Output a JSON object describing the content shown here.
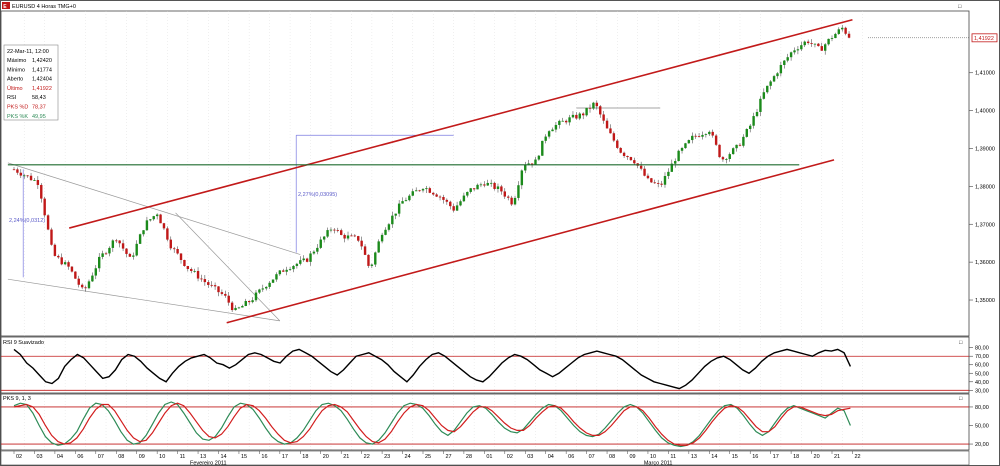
{
  "window": {
    "title": "EURUSD 4 Horas TMG+0",
    "maximize_glyph": "□",
    "close_glyph": "✕",
    "icons": [
      "chart-symbol-icon",
      "maximize-icon",
      "close-icon"
    ]
  },
  "colors": {
    "up_candle": "#1b8a1b",
    "down_candle": "#c01818",
    "channel": "#c21a1a",
    "support": "#1f6b2f",
    "rsi_line": "#000000",
    "stoch_k": "#2e8b57",
    "stoch_d": "#d21e1e",
    "last_price_box": "#c21a1a"
  },
  "info_box": {
    "date": "22-Mar-11, 12:00",
    "rows": [
      {
        "label": "Máximo",
        "value": "1,42420"
      },
      {
        "label": "Mínimo",
        "value": "1,41774"
      },
      {
        "label": "Aberto",
        "value": "1,42404"
      },
      {
        "label": "Último",
        "value": "1,41922",
        "color": "#c21a1a"
      },
      {
        "label": "RSI",
        "value": "58,43"
      },
      {
        "label": "PKS %D",
        "value": "78,37",
        "color": "#c21a1a"
      },
      {
        "label": "PKS %K",
        "value": "49,95",
        "color": "#2e8b57"
      }
    ]
  },
  "annotations": {
    "left_move": "2,24%(0,0312)",
    "mid_move": "2,27%(0,03095)"
  },
  "chart_data": {
    "type": "candlestick",
    "title": "EURUSD 4 Horas TMG+0",
    "ylim": [
      1.3405,
      1.4263
    ],
    "price_ticks": [
      1.35,
      1.36,
      1.37,
      1.38,
      1.39,
      1.4,
      1.41
    ],
    "price_tick_labels": [
      "1,35000",
      "1,36000",
      "1,37000",
      "1,38000",
      "1,39000",
      "1,40000",
      "1,41000"
    ],
    "last_price": 1.41922,
    "last_price_label": "1,41922",
    "support_level": 1.3857,
    "resistance_box": {
      "from_day": 27.5,
      "to_day": 31.6,
      "level": 1.4007
    },
    "days": [
      "02",
      "03",
      "04",
      "06",
      "07",
      "08",
      "09",
      "10",
      "11",
      "13",
      "14",
      "15",
      "16",
      "17",
      "18",
      "20",
      "21",
      "22",
      "23",
      "24",
      "25",
      "27",
      "28",
      "01",
      "02",
      "03",
      "04",
      "06",
      "07",
      "08",
      "09",
      "10",
      "11",
      "13",
      "14",
      "15",
      "16",
      "17",
      "18",
      "20",
      "21",
      "22"
    ],
    "months": [
      {
        "label": "Fevereiro 2011",
        "day": 9.5
      },
      {
        "label": "Março 2011",
        "day": 31.5
      }
    ],
    "price_path": [
      [
        0,
        1.3845
      ],
      [
        1.2,
        1.381
      ],
      [
        1.9,
        1.362
      ],
      [
        2.7,
        1.3585
      ],
      [
        3.4,
        1.352
      ],
      [
        4.2,
        1.361
      ],
      [
        5.0,
        1.3665
      ],
      [
        5.7,
        1.3605
      ],
      [
        6.4,
        1.37
      ],
      [
        7.0,
        1.373
      ],
      [
        7.7,
        1.364
      ],
      [
        8.5,
        1.3585
      ],
      [
        9.4,
        1.3545
      ],
      [
        10.3,
        1.351
      ],
      [
        10.8,
        1.347
      ],
      [
        11.6,
        1.35
      ],
      [
        12.4,
        1.3545
      ],
      [
        13.3,
        1.3585
      ],
      [
        14.3,
        1.3605
      ],
      [
        15.0,
        1.3655
      ],
      [
        15.6,
        1.3695
      ],
      [
        16.0,
        1.367
      ],
      [
        16.9,
        1.366
      ],
      [
        17.4,
        1.358
      ],
      [
        18.0,
        1.368
      ],
      [
        19.0,
        1.376
      ],
      [
        20.0,
        1.38
      ],
      [
        20.8,
        1.3775
      ],
      [
        21.5,
        1.374
      ],
      [
        22.3,
        1.379
      ],
      [
        23.0,
        1.381
      ],
      [
        23.8,
        1.379
      ],
      [
        24.4,
        1.3755
      ],
      [
        24.9,
        1.386
      ],
      [
        25.5,
        1.3865
      ],
      [
        26.1,
        1.395
      ],
      [
        27.0,
        1.3975
      ],
      [
        27.8,
        1.399
      ],
      [
        28.4,
        1.402
      ],
      [
        29.0,
        1.395
      ],
      [
        29.7,
        1.389
      ],
      [
        30.3,
        1.387
      ],
      [
        31.0,
        1.3815
      ],
      [
        31.6,
        1.38
      ],
      [
        32.4,
        1.388
      ],
      [
        33.2,
        1.393
      ],
      [
        34.0,
        1.395
      ],
      [
        34.6,
        1.387
      ],
      [
        35.4,
        1.3905
      ],
      [
        36.0,
        1.396
      ],
      [
        36.7,
        1.405
      ],
      [
        37.4,
        1.411
      ],
      [
        38.1,
        1.416
      ],
      [
        38.8,
        1.4185
      ],
      [
        39.4,
        1.416
      ],
      [
        40.0,
        1.4195
      ],
      [
        40.5,
        1.4218
      ],
      [
        40.9,
        1.4192
      ]
    ],
    "channel_upper": [
      [
        2.7,
        1.369
      ],
      [
        41.0,
        1.424
      ]
    ],
    "channel_lower": [
      [
        10.4,
        1.344
      ],
      [
        40.1,
        1.387
      ]
    ],
    "wedge_lines": [
      {
        "points": [
          [
            -0.3,
            1.3862
          ],
          [
            14.0,
            1.362
          ]
        ],
        "color": "#999999"
      },
      {
        "points": [
          [
            -0.3,
            1.3555
          ],
          [
            13.0,
            1.3445
          ]
        ],
        "color": "#999999"
      },
      {
        "points": [
          [
            7.9,
            1.373
          ],
          [
            13.0,
            1.3445
          ]
        ],
        "color": "#999999"
      }
    ],
    "move_lines": [
      {
        "points": [
          [
            13.8,
            1.3625
          ],
          [
            13.8,
            1.3935
          ]
        ],
        "color": "#7a7ae0"
      },
      {
        "points": [
          [
            13.8,
            1.3935
          ],
          [
            21.5,
            1.3935
          ]
        ],
        "color": "#7a7ae0"
      },
      {
        "points": [
          [
            0.45,
            1.3845
          ],
          [
            0.45,
            1.356
          ]
        ],
        "color": "#7a7ae0"
      }
    ],
    "rsi": {
      "name": "RSI 9 Suavizado",
      "ylim": [
        28,
        82
      ],
      "ticks": [
        30,
        40,
        50,
        60,
        70,
        80
      ],
      "tick_labels": [
        "30,00",
        "40,00",
        "50,00",
        "60,00",
        "70,00",
        "80,00"
      ],
      "levels": [
        30,
        70
      ],
      "values": [
        78,
        72,
        62,
        56,
        48,
        40,
        38,
        44,
        58,
        66,
        72,
        68,
        60,
        52,
        44,
        46,
        54,
        66,
        72,
        70,
        64,
        56,
        50,
        44,
        40,
        50,
        58,
        64,
        68,
        70,
        72,
        68,
        62,
        60,
        56,
        60,
        66,
        72,
        74,
        72,
        68,
        64,
        62,
        70,
        76,
        78,
        74,
        70,
        64,
        58,
        52,
        48,
        54,
        62,
        70,
        72,
        74,
        70,
        66,
        60,
        52,
        46,
        40,
        48,
        58,
        66,
        72,
        74,
        70,
        64,
        58,
        52,
        46,
        42,
        40,
        46,
        54,
        62,
        68,
        72,
        70,
        66,
        60,
        54,
        50,
        46,
        50,
        56,
        62,
        68,
        72,
        74,
        76,
        74,
        72,
        70,
        66,
        60,
        54,
        48,
        44,
        40,
        38,
        36,
        34,
        32,
        36,
        42,
        50,
        58,
        64,
        68,
        70,
        66,
        60,
        54,
        50,
        56,
        64,
        70,
        74,
        76,
        78,
        76,
        74,
        72,
        70,
        74,
        77,
        76,
        78,
        74,
        58
      ]
    },
    "stochastic": {
      "name": "PKS 9, 1, 3",
      "ylim": [
        12,
        88
      ],
      "ticks": [
        20,
        50,
        80
      ],
      "tick_labels": [
        "20,00",
        "50,00",
        "80,00"
      ],
      "levels": [
        20,
        80
      ],
      "k_values": [
        82,
        86,
        84,
        70,
        50,
        32,
        22,
        18,
        20,
        28,
        40,
        60,
        78,
        86,
        84,
        74,
        58,
        40,
        26,
        20,
        22,
        34,
        52,
        70,
        84,
        88,
        84,
        70,
        54,
        38,
        28,
        26,
        32,
        46,
        64,
        80,
        86,
        84,
        76,
        62,
        46,
        32,
        24,
        20,
        22,
        30,
        42,
        58,
        74,
        84,
        86,
        82,
        74,
        60,
        44,
        30,
        22,
        20,
        26,
        38,
        54,
        70,
        82,
        86,
        84,
        78,
        66,
        52,
        40,
        34,
        42,
        56,
        70,
        80,
        82,
        78,
        68,
        56,
        46,
        40,
        38,
        44,
        56,
        68,
        78,
        84,
        82,
        74,
        62,
        50,
        40,
        34,
        32,
        36,
        46,
        58,
        70,
        80,
        84,
        80,
        70,
        56,
        42,
        30,
        22,
        18,
        16,
        18,
        24,
        34,
        48,
        62,
        74,
        82,
        84,
        78,
        66,
        52,
        40,
        34,
        40,
        54,
        68,
        78,
        82,
        78,
        74,
        70,
        66,
        62,
        70,
        78,
        74,
        50
      ],
      "d_values": [
        80,
        82,
        84,
        80,
        68,
        50,
        34,
        24,
        20,
        22,
        30,
        44,
        62,
        76,
        84,
        84,
        74,
        58,
        42,
        30,
        24,
        26,
        38,
        54,
        70,
        82,
        86,
        82,
        70,
        56,
        42,
        32,
        30,
        36,
        48,
        64,
        78,
        84,
        82,
        74,
        62,
        48,
        36,
        26,
        22,
        24,
        32,
        44,
        60,
        74,
        82,
        84,
        80,
        72,
        58,
        44,
        32,
        24,
        22,
        28,
        40,
        56,
        70,
        80,
        84,
        82,
        74,
        62,
        50,
        42,
        40,
        48,
        60,
        72,
        80,
        80,
        74,
        64,
        54,
        46,
        42,
        42,
        50,
        62,
        72,
        80,
        82,
        78,
        68,
        56,
        46,
        38,
        34,
        34,
        40,
        50,
        62,
        74,
        80,
        80,
        74,
        62,
        48,
        36,
        26,
        20,
        18,
        18,
        22,
        30,
        42,
        56,
        68,
        78,
        82,
        80,
        72,
        60,
        48,
        40,
        40,
        48,
        62,
        74,
        80,
        80,
        76,
        72,
        68,
        66,
        68,
        74,
        76,
        78
      ]
    }
  }
}
